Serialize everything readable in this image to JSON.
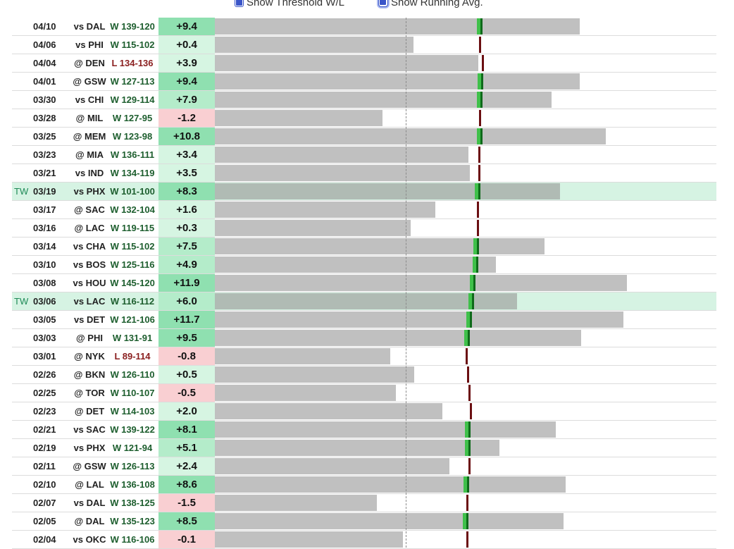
{
  "controls": {
    "threshold_label": "Show Threshold W/L",
    "running_avg_label": "Show Running Avg."
  },
  "colors": {
    "bar": "#c0c0c0",
    "tw_bar": "#b0bbb4",
    "tw_highlight": "#d6f3e3",
    "pos_strong": "#8fe0b0",
    "pos_mid": "#b4ecca",
    "pos_light": "#d6f5e2",
    "neg": "#f9cfd2",
    "avg_up": "#2e9e3a",
    "avg_down": "#6b0f12"
  },
  "chart_data": {
    "type": "bar",
    "threshold_marker": "dashed line",
    "rows": [
      {
        "tw": "",
        "date": "04/10",
        "opp": "vs DAL",
        "result": "W 139-120",
        "value": "+9.4",
        "v": 9.4,
        "bar": 0.728,
        "avg": 0.53,
        "trend": "up"
      },
      {
        "tw": "",
        "date": "04/06",
        "opp": "vs PHI",
        "result": "W 115-102",
        "value": "+0.4",
        "v": 0.4,
        "bar": 0.396,
        "avg": 0.527,
        "trend": "down"
      },
      {
        "tw": "",
        "date": "04/04",
        "opp": "@ DEN",
        "result": "L 134-136",
        "value": "+3.9",
        "v": 3.9,
        "bar": 0.525,
        "avg": 0.532,
        "trend": "down"
      },
      {
        "tw": "",
        "date": "04/01",
        "opp": "@ GSW",
        "result": "W 127-113",
        "value": "+9.4",
        "v": 9.4,
        "bar": 0.728,
        "avg": 0.531,
        "trend": "up"
      },
      {
        "tw": "",
        "date": "03/30",
        "opp": "vs CHI",
        "result": "W 129-114",
        "value": "+7.9",
        "v": 7.9,
        "bar": 0.672,
        "avg": 0.529,
        "trend": "up"
      },
      {
        "tw": "",
        "date": "03/28",
        "opp": "@ MIL",
        "result": "W 127-95",
        "value": "-1.2",
        "v": -1.2,
        "bar": 0.334,
        "avg": 0.526,
        "trend": "down"
      },
      {
        "tw": "",
        "date": "03/25",
        "opp": "@ MEM",
        "result": "W 123-98",
        "value": "+10.8",
        "v": 10.8,
        "bar": 0.78,
        "avg": 0.529,
        "trend": "up"
      },
      {
        "tw": "",
        "date": "03/23",
        "opp": "@ MIA",
        "result": "W 136-111",
        "value": "+3.4",
        "v": 3.4,
        "bar": 0.505,
        "avg": 0.525,
        "trend": "down"
      },
      {
        "tw": "",
        "date": "03/21",
        "opp": "vs IND",
        "result": "W 134-119",
        "value": "+3.5",
        "v": 3.5,
        "bar": 0.509,
        "avg": 0.525,
        "trend": "down"
      },
      {
        "tw": "TW",
        "date": "03/19",
        "opp": "vs PHX",
        "result": "W 101-100",
        "value": "+8.3",
        "v": 8.3,
        "bar": 0.688,
        "avg": 0.525,
        "trend": "up"
      },
      {
        "tw": "",
        "date": "03/17",
        "opp": "@ SAC",
        "result": "W 132-104",
        "value": "+1.6",
        "v": 1.6,
        "bar": 0.439,
        "avg": 0.522,
        "trend": "down"
      },
      {
        "tw": "",
        "date": "03/16",
        "opp": "@ LAC",
        "result": "W 119-115",
        "value": "+0.3",
        "v": 0.3,
        "bar": 0.39,
        "avg": 0.523,
        "trend": "down"
      },
      {
        "tw": "",
        "date": "03/14",
        "opp": "vs CHA",
        "result": "W 115-102",
        "value": "+7.5",
        "v": 7.5,
        "bar": 0.657,
        "avg": 0.523,
        "trend": "up"
      },
      {
        "tw": "",
        "date": "03/10",
        "opp": "vs BOS",
        "result": "W 125-116",
        "value": "+4.9",
        "v": 4.9,
        "bar": 0.561,
        "avg": 0.521,
        "trend": "up"
      },
      {
        "tw": "",
        "date": "03/08",
        "opp": "vs HOU",
        "result": "W 145-120",
        "value": "+11.9",
        "v": 11.9,
        "bar": 0.821,
        "avg": 0.515,
        "trend": "up"
      },
      {
        "tw": "TW",
        "date": "03/06",
        "opp": "vs LAC",
        "result": "W 116-112",
        "value": "+6.0",
        "v": 6.0,
        "bar": 0.602,
        "avg": 0.513,
        "trend": "up"
      },
      {
        "tw": "",
        "date": "03/05",
        "opp": "vs DET",
        "result": "W 121-106",
        "value": "+11.7",
        "v": 11.7,
        "bar": 0.814,
        "avg": 0.509,
        "trend": "up"
      },
      {
        "tw": "",
        "date": "03/03",
        "opp": "@ PHI",
        "result": "W 131-91",
        "value": "+9.5",
        "v": 9.5,
        "bar": 0.731,
        "avg": 0.504,
        "trend": "up"
      },
      {
        "tw": "",
        "date": "03/01",
        "opp": "@ NYK",
        "result": "L 89-114",
        "value": "-0.8",
        "v": -0.8,
        "bar": 0.35,
        "avg": 0.5,
        "trend": "down"
      },
      {
        "tw": "",
        "date": "02/26",
        "opp": "@ BKN",
        "result": "W 126-110",
        "value": "+0.5",
        "v": 0.5,
        "bar": 0.398,
        "avg": 0.503,
        "trend": "down"
      },
      {
        "tw": "",
        "date": "02/25",
        "opp": "@ TOR",
        "result": "W 110-107",
        "value": "-0.5",
        "v": -0.5,
        "bar": 0.361,
        "avg": 0.505,
        "trend": "down"
      },
      {
        "tw": "",
        "date": "02/23",
        "opp": "@ DET",
        "result": "W 114-103",
        "value": "+2.0",
        "v": 2.0,
        "bar": 0.453,
        "avg": 0.508,
        "trend": "down"
      },
      {
        "tw": "",
        "date": "02/21",
        "opp": "vs SAC",
        "result": "W 139-122",
        "value": "+8.1",
        "v": 8.1,
        "bar": 0.68,
        "avg": 0.506,
        "trend": "up"
      },
      {
        "tw": "",
        "date": "02/19",
        "opp": "vs PHX",
        "result": "W 121-94",
        "value": "+5.1",
        "v": 5.1,
        "bar": 0.568,
        "avg": 0.505,
        "trend": "up"
      },
      {
        "tw": "",
        "date": "02/11",
        "opp": "@ GSW",
        "result": "W 126-113",
        "value": "+2.4",
        "v": 2.4,
        "bar": 0.468,
        "avg": 0.505,
        "trend": "down"
      },
      {
        "tw": "",
        "date": "02/10",
        "opp": "@ LAL",
        "result": "W 136-108",
        "value": "+8.6",
        "v": 8.6,
        "bar": 0.699,
        "avg": 0.503,
        "trend": "up"
      },
      {
        "tw": "",
        "date": "02/07",
        "opp": "vs DAL",
        "result": "W 138-125",
        "value": "-1.5",
        "v": -1.5,
        "bar": 0.323,
        "avg": 0.502,
        "trend": "down"
      },
      {
        "tw": "",
        "date": "02/05",
        "opp": "@ DAL",
        "result": "W 135-123",
        "value": "+8.5",
        "v": 8.5,
        "bar": 0.695,
        "avg": 0.502,
        "trend": "up"
      },
      {
        "tw": "",
        "date": "02/04",
        "opp": "vs OKC",
        "result": "W 116-106",
        "value": "-0.1",
        "v": -0.1,
        "bar": 0.375,
        "avg": 0.502,
        "trend": "down"
      }
    ]
  }
}
